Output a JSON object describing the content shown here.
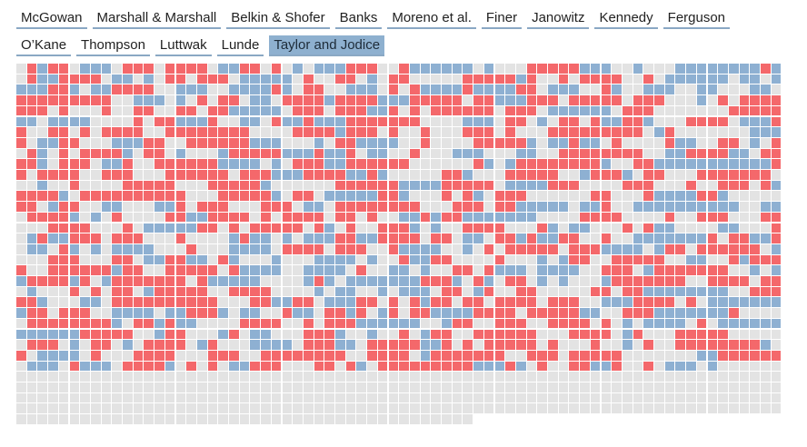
{
  "tabs": [
    {
      "label": "McGowan"
    },
    {
      "label": "Marshall & Marshall"
    },
    {
      "label": "Belkin & Shofer"
    },
    {
      "label": "Banks"
    },
    {
      "label": "Moreno et al."
    },
    {
      "label": "Finer"
    },
    {
      "label": "Janowitz"
    },
    {
      "label": "Kennedy"
    },
    {
      "label": "Ferguson"
    },
    {
      "label": "O’Kane"
    },
    {
      "label": "Thompson"
    },
    {
      "label": "Luttwak"
    },
    {
      "label": "Lunde"
    },
    {
      "label": "Taylor and Jodice"
    }
  ],
  "selected_tab": "Taylor and Jodice",
  "colors": {
    "red": "#f4686b",
    "blue": "#8eb0d2",
    "gray": "#e3e3e3",
    "tab_underline": "#8aa8c4",
    "tab_active_bg": "#8eb0cf"
  },
  "grid": {
    "columns": 72,
    "rows": 34,
    "last_row_count": 43
  }
}
